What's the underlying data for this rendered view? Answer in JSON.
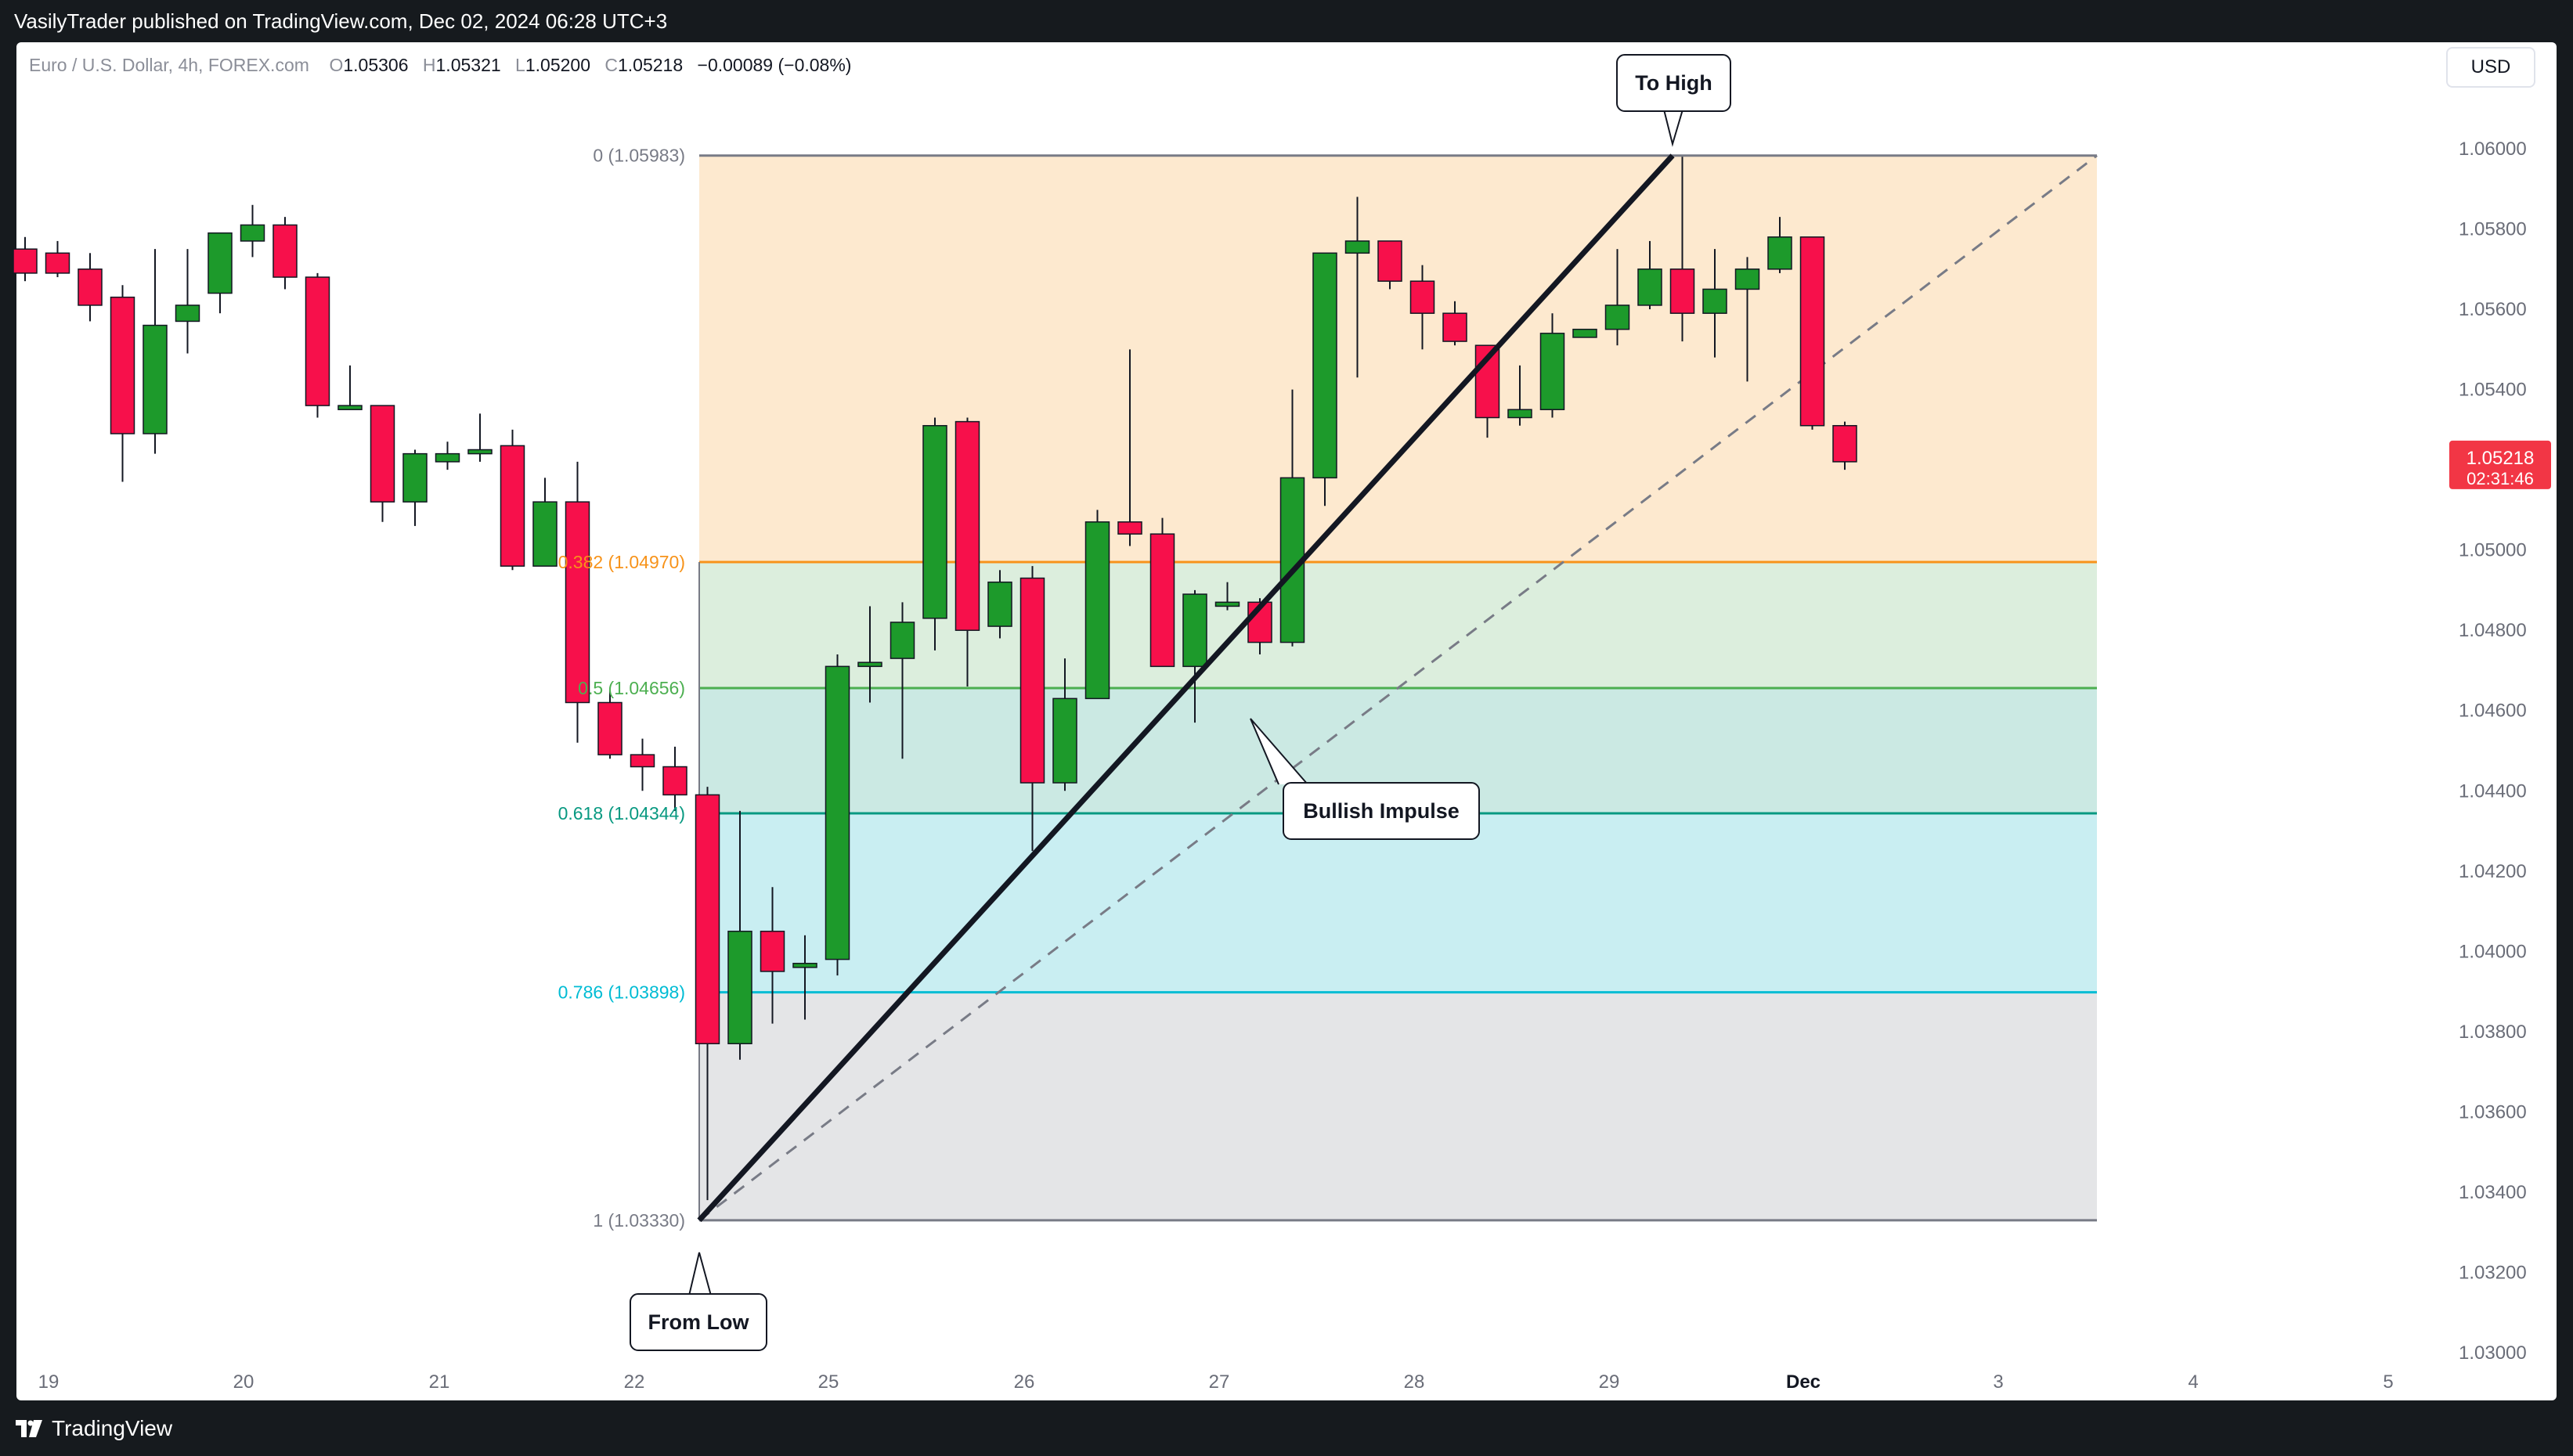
{
  "header": {
    "published_by": "VasilyTrader published on TradingView.com, Dec 02, 2024 06:28 UTC+3"
  },
  "legend": {
    "symbol": "Euro / U.S. Dollar, 4h, FOREX.com",
    "open_label": "O",
    "open": "1.05306",
    "high_label": "H",
    "high": "1.05321",
    "low_label": "L",
    "low": "1.05200",
    "close_label": "C",
    "close": "1.05218",
    "change": "−0.00089 (−0.08%)"
  },
  "currency_button": "USD",
  "last_price": {
    "price": "1.05218",
    "countdown": "02:31:46",
    "value": 1.05218,
    "color": "#f23645"
  },
  "footer": {
    "brand": "TradingView"
  },
  "annotations": {
    "to_high": "To High",
    "from_low": "From Low",
    "bullish_impulse": "Bullish Impulse"
  },
  "colors": {
    "up": "#089981",
    "up_fill": "#1d9a2b",
    "down": "#f7104b",
    "wick": "#131722",
    "fib_0": "#787b86",
    "fib_382": "#f7931a",
    "fib_5": "#4caf50",
    "fib_618": "#089981",
    "fib_786": "#00bcd4",
    "fib_1": "#787b86"
  },
  "chart_data": {
    "type": "candlestick",
    "timeframe": "4h",
    "ylim": [
      1.03,
      1.0615
    ],
    "y_ticks": [
      "1.06000",
      "1.05800",
      "1.05600",
      "1.05400",
      "1.05200",
      "1.05000",
      "1.04800",
      "1.04600",
      "1.04400",
      "1.04200",
      "1.04000",
      "1.03800",
      "1.03600",
      "1.03400",
      "1.03200",
      "1.03000"
    ],
    "x_ticks": [
      "19",
      "20",
      "21",
      "22",
      "25",
      "26",
      "27",
      "28",
      "29",
      "Dec",
      "3",
      "4",
      "5"
    ],
    "fib_levels": [
      {
        "ratio": "0",
        "price": 1.05983,
        "label": "0 (1.05983)"
      },
      {
        "ratio": "0.382",
        "price": 1.0497,
        "label": "0.382 (1.04970)"
      },
      {
        "ratio": "0.5",
        "price": 1.04656,
        "label": "0.5 (1.04656)"
      },
      {
        "ratio": "0.618",
        "price": 1.04344,
        "label": "0.618 (1.04344)"
      },
      {
        "ratio": "0.786",
        "price": 1.03898,
        "label": "0.786 (1.03898)"
      },
      {
        "ratio": "1",
        "price": 1.0333,
        "label": "1 (1.03330)"
      }
    ],
    "candles": [
      {
        "o": 1.0575,
        "h": 1.0578,
        "l": 1.0567,
        "c": 1.0569
      },
      {
        "o": 1.0574,
        "h": 1.0577,
        "l": 1.0568,
        "c": 1.0569
      },
      {
        "o": 1.057,
        "h": 1.0574,
        "l": 1.0557,
        "c": 1.0561
      },
      {
        "o": 1.0563,
        "h": 1.0566,
        "l": 1.0517,
        "c": 1.0529
      },
      {
        "o": 1.0529,
        "h": 1.0575,
        "l": 1.0524,
        "c": 1.0556
      },
      {
        "o": 1.0557,
        "h": 1.0575,
        "l": 1.0549,
        "c": 1.0561
      },
      {
        "o": 1.0564,
        "h": 1.0578,
        "l": 1.0559,
        "c": 1.0579
      },
      {
        "o": 1.0577,
        "h": 1.0586,
        "l": 1.0573,
        "c": 1.0581
      },
      {
        "o": 1.0581,
        "h": 1.0583,
        "l": 1.0565,
        "c": 1.0568
      },
      {
        "o": 1.0568,
        "h": 1.0569,
        "l": 1.0533,
        "c": 1.0536
      },
      {
        "o": 1.0535,
        "h": 1.0546,
        "l": 1.0535,
        "c": 1.0536
      },
      {
        "o": 1.0536,
        "h": 1.0536,
        "l": 1.0507,
        "c": 1.0512
      },
      {
        "o": 1.0512,
        "h": 1.0525,
        "l": 1.0506,
        "c": 1.0524
      },
      {
        "o": 1.0522,
        "h": 1.0527,
        "l": 1.052,
        "c": 1.0524
      },
      {
        "o": 1.0524,
        "h": 1.0534,
        "l": 1.0522,
        "c": 1.0525
      },
      {
        "o": 1.0526,
        "h": 1.053,
        "l": 1.0495,
        "c": 1.0496
      },
      {
        "o": 1.0496,
        "h": 1.0518,
        "l": 1.0496,
        "c": 1.0512
      },
      {
        "o": 1.0512,
        "h": 1.0522,
        "l": 1.0452,
        "c": 1.0462
      },
      {
        "o": 1.0462,
        "h": 1.0465,
        "l": 1.0448,
        "c": 1.0449
      },
      {
        "o": 1.0449,
        "h": 1.0453,
        "l": 1.044,
        "c": 1.0446
      },
      {
        "o": 1.0446,
        "h": 1.0451,
        "l": 1.0435,
        "c": 1.0439
      },
      {
        "o": 1.0439,
        "h": 1.0441,
        "l": 1.0338,
        "c": 1.0377
      },
      {
        "o": 1.0377,
        "h": 1.0435,
        "l": 1.0373,
        "c": 1.0405
      },
      {
        "o": 1.0405,
        "h": 1.0416,
        "l": 1.0382,
        "c": 1.0395
      },
      {
        "o": 1.0396,
        "h": 1.0404,
        "l": 1.0383,
        "c": 1.0397
      },
      {
        "o": 1.0398,
        "h": 1.0474,
        "l": 1.0394,
        "c": 1.0471
      },
      {
        "o": 1.0471,
        "h": 1.0486,
        "l": 1.0462,
        "c": 1.0472
      },
      {
        "o": 1.0473,
        "h": 1.0487,
        "l": 1.0448,
        "c": 1.0482
      },
      {
        "o": 1.0483,
        "h": 1.0533,
        "l": 1.0475,
        "c": 1.0531
      },
      {
        "o": 1.0532,
        "h": 1.0533,
        "l": 1.0466,
        "c": 1.048
      },
      {
        "o": 1.0481,
        "h": 1.0495,
        "l": 1.0478,
        "c": 1.0492
      },
      {
        "o": 1.0493,
        "h": 1.0496,
        "l": 1.0425,
        "c": 1.0442
      },
      {
        "o": 1.0442,
        "h": 1.0473,
        "l": 1.044,
        "c": 1.0463
      },
      {
        "o": 1.0463,
        "h": 1.051,
        "l": 1.0463,
        "c": 1.0507
      },
      {
        "o": 1.0507,
        "h": 1.055,
        "l": 1.0501,
        "c": 1.0504
      },
      {
        "o": 1.0504,
        "h": 1.0508,
        "l": 1.0471,
        "c": 1.0471
      },
      {
        "o": 1.0471,
        "h": 1.049,
        "l": 1.0457,
        "c": 1.0489
      },
      {
        "o": 1.0486,
        "h": 1.0492,
        "l": 1.0485,
        "c": 1.0487
      },
      {
        "o": 1.0487,
        "h": 1.0488,
        "l": 1.0474,
        "c": 1.0477
      },
      {
        "o": 1.0477,
        "h": 1.054,
        "l": 1.0476,
        "c": 1.0518
      },
      {
        "o": 1.0518,
        "h": 1.0574,
        "l": 1.0511,
        "c": 1.0574
      },
      {
        "o": 1.0574,
        "h": 1.0588,
        "l": 1.0543,
        "c": 1.0577
      },
      {
        "o": 1.0577,
        "h": 1.0577,
        "l": 1.0565,
        "c": 1.0567
      },
      {
        "o": 1.0567,
        "h": 1.0571,
        "l": 1.055,
        "c": 1.0559
      },
      {
        "o": 1.0559,
        "h": 1.0562,
        "l": 1.0551,
        "c": 1.0552
      },
      {
        "o": 1.0551,
        "h": 1.0551,
        "l": 1.0528,
        "c": 1.0533
      },
      {
        "o": 1.0533,
        "h": 1.0546,
        "l": 1.0531,
        "c": 1.0535
      },
      {
        "o": 1.0535,
        "h": 1.0559,
        "l": 1.0533,
        "c": 1.0554
      },
      {
        "o": 1.0553,
        "h": 1.0555,
        "l": 1.0553,
        "c": 1.0555
      },
      {
        "o": 1.0555,
        "h": 1.0575,
        "l": 1.0551,
        "c": 1.0561
      },
      {
        "o": 1.0561,
        "h": 1.0577,
        "l": 1.056,
        "c": 1.057
      },
      {
        "o": 1.057,
        "h": 1.0598,
        "l": 1.0552,
        "c": 1.0559
      },
      {
        "o": 1.0559,
        "h": 1.0575,
        "l": 1.0548,
        "c": 1.0565
      },
      {
        "o": 1.0565,
        "h": 1.0573,
        "l": 1.0542,
        "c": 1.057
      },
      {
        "o": 1.057,
        "h": 1.0583,
        "l": 1.0569,
        "c": 1.0578
      },
      {
        "o": 1.0578,
        "h": 1.0578,
        "l": 1.053,
        "c": 1.0531
      },
      {
        "o": 1.0531,
        "h": 1.0532,
        "l": 1.052,
        "c": 1.0522
      }
    ]
  }
}
